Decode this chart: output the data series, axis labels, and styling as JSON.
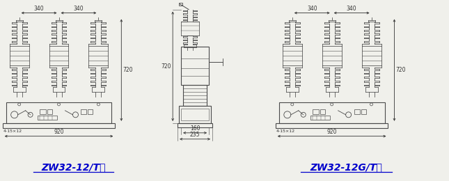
{
  "title_left": "ZW32-12/T型",
  "title_right": "ZW32-12G/T型",
  "bg_color": "#f0f0eb",
  "line_color": "#4a4a4a",
  "dim_color": "#333333",
  "title_color": "#0000cc",
  "font_size_title": 10,
  "dim_340": "340",
  "dim_920": "920",
  "dim_720": "720",
  "dim_160": "160",
  "dim_235": "235",
  "dim_4_15_12": "4-15×12"
}
